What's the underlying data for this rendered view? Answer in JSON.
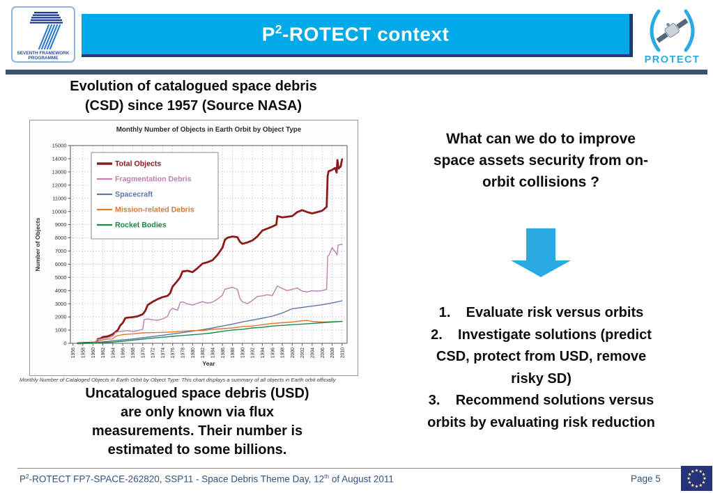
{
  "theme": {
    "banner_cyan": "#00a9e8",
    "banner_edge_navy": "#1e3c72",
    "separator_navy": "#3d5270",
    "arrow_cyan": "#29abe2",
    "protect_cyan": "#29abe2",
    "footer_navy": "#31517e"
  },
  "header": {
    "fp7": {
      "lines": [
        "SEVENTH FRAMEWORK",
        "PROGRAMME"
      ]
    },
    "title_parts": {
      "pre": "P",
      "sup": "2",
      "rest": "-ROTECT context"
    },
    "protect": {
      "label": "PROTECT"
    }
  },
  "left": {
    "heading_lines": [
      "Evolution of catalogued space debris",
      "(CSD) since 1957 (Source NASA)"
    ],
    "chart_caption": "Monthly Number of Cataloged Objects in Earth Orbit by Object Type:  This chart displays a summary of all objects in Earth orbit officially",
    "usd_lines": [
      "Uncatalogued space debris (USD)",
      "are only known via flux",
      "measurements. Their number is",
      "estimated to some billions."
    ]
  },
  "right": {
    "question_lines": [
      "What can we do to improve",
      "space assets security from on-",
      "orbit collisions ?"
    ],
    "steps_lines": [
      "1.    Evaluate risk versus orbits",
      "2.    Investigate solutions (predict",
      "CSD, protect from USD, remove",
      "risky SD)",
      "3.    Recommend solutions versus",
      "orbits by evaluating risk reduction"
    ]
  },
  "footer": {
    "parts": {
      "pre": "P",
      "sup1": "2",
      "mid": "-ROTECT FP7-SPACE-262820, SSP11 - Space Debris Theme Day, 12",
      "sup2": "th",
      "end": " of August 2011"
    },
    "page_label": "Page 5",
    "eu_flag": {
      "stars": 12,
      "bg": "#26337b",
      "star_color": "#efe2a2"
    }
  },
  "chart_data": {
    "type": "line",
    "title": "Monthly Number of Objects in Earth Orbit by Object Type",
    "xlabel": "Year",
    "ylabel": "Number of Objects",
    "xlim": [
      1955.5,
      2011
    ],
    "ylim": [
      0,
      15000
    ],
    "x_ticks": [
      1956,
      1958,
      1960,
      1962,
      1964,
      1966,
      1968,
      1970,
      1972,
      1974,
      1976,
      1978,
      1980,
      1982,
      1984,
      1986,
      1988,
      1990,
      1992,
      1994,
      1996,
      1998,
      2000,
      2002,
      2004,
      2006,
      2008,
      2010
    ],
    "y_ticks": [
      0,
      1000,
      2000,
      3000,
      4000,
      5000,
      6000,
      7000,
      8000,
      9000,
      10000,
      11000,
      12000,
      13000,
      14000,
      15000
    ],
    "grid": true,
    "legend_position": "upper-left",
    "series": [
      {
        "name": "Total Objects",
        "color": "#8b1b1b",
        "width": 2.8,
        "points": [
          [
            1957,
            0
          ],
          [
            1958,
            15
          ],
          [
            1959,
            30
          ],
          [
            1960,
            50
          ],
          [
            1960.8,
            60
          ],
          [
            1961,
            320
          ],
          [
            1961.5,
            350
          ],
          [
            1962,
            475
          ],
          [
            1963,
            530
          ],
          [
            1964,
            680
          ],
          [
            1965,
            1000
          ],
          [
            1965.5,
            1350
          ],
          [
            1966,
            1550
          ],
          [
            1966.5,
            1900
          ],
          [
            1967,
            1950
          ],
          [
            1968,
            1980
          ],
          [
            1969,
            2050
          ],
          [
            1970,
            2200
          ],
          [
            1970.5,
            2450
          ],
          [
            1971,
            2900
          ],
          [
            1972,
            3150
          ],
          [
            1973,
            3350
          ],
          [
            1974,
            3500
          ],
          [
            1975,
            3600
          ],
          [
            1975.5,
            3800
          ],
          [
            1976,
            4300
          ],
          [
            1977,
            4750
          ],
          [
            1977.5,
            5000
          ],
          [
            1978,
            5450
          ],
          [
            1979,
            5500
          ],
          [
            1980,
            5400
          ],
          [
            1981,
            5700
          ],
          [
            1982,
            6050
          ],
          [
            1983,
            6150
          ],
          [
            1984,
            6300
          ],
          [
            1985,
            6700
          ],
          [
            1986,
            7250
          ],
          [
            1986.5,
            7850
          ],
          [
            1987,
            8000
          ],
          [
            1988,
            8100
          ],
          [
            1989,
            8050
          ],
          [
            1989.5,
            7700
          ],
          [
            1990,
            7550
          ],
          [
            1991,
            7650
          ],
          [
            1992,
            7800
          ],
          [
            1993,
            8100
          ],
          [
            1994,
            8550
          ],
          [
            1995,
            8700
          ],
          [
            1996,
            8850
          ],
          [
            1996.8,
            9000
          ],
          [
            1997,
            9650
          ],
          [
            1998,
            9550
          ],
          [
            1999,
            9600
          ],
          [
            2000,
            9650
          ],
          [
            2001,
            9950
          ],
          [
            2002,
            10100
          ],
          [
            2003,
            9950
          ],
          [
            2004,
            9850
          ],
          [
            2005,
            9950
          ],
          [
            2006,
            10050
          ],
          [
            2006.9,
            10350
          ],
          [
            2007.1,
            12700
          ],
          [
            2007.3,
            13050
          ],
          [
            2008,
            13150
          ],
          [
            2008.6,
            13300
          ],
          [
            2008.9,
            12950
          ],
          [
            2009.05,
            13900
          ],
          [
            2009.3,
            13250
          ],
          [
            2009.7,
            13400
          ],
          [
            2010,
            13950
          ]
        ]
      },
      {
        "name": "Fragmentation Debris",
        "color": "#c07fae",
        "width": 1.4,
        "points": [
          [
            1957,
            0
          ],
          [
            1960,
            0
          ],
          [
            1961,
            280
          ],
          [
            1962,
            360
          ],
          [
            1963,
            420
          ],
          [
            1964,
            520
          ],
          [
            1964.5,
            800
          ],
          [
            1965,
            870
          ],
          [
            1966,
            920
          ],
          [
            1967,
            960
          ],
          [
            1968,
            900
          ],
          [
            1969,
            960
          ],
          [
            1970,
            1050
          ],
          [
            1970.3,
            1800
          ],
          [
            1971,
            1850
          ],
          [
            1972,
            1780
          ],
          [
            1973,
            1750
          ],
          [
            1974,
            1850
          ],
          [
            1975,
            2050
          ],
          [
            1975.5,
            2500
          ],
          [
            1976,
            2650
          ],
          [
            1977,
            2500
          ],
          [
            1977.5,
            3100
          ],
          [
            1978,
            3150
          ],
          [
            1979,
            2980
          ],
          [
            1980,
            2900
          ],
          [
            1981,
            3050
          ],
          [
            1982,
            3160
          ],
          [
            1983,
            3050
          ],
          [
            1984,
            3120
          ],
          [
            1985,
            3350
          ],
          [
            1986,
            3650
          ],
          [
            1986.5,
            4100
          ],
          [
            1987,
            4150
          ],
          [
            1988,
            4250
          ],
          [
            1989,
            4100
          ],
          [
            1989.5,
            3400
          ],
          [
            1990,
            3150
          ],
          [
            1991,
            3000
          ],
          [
            1992,
            3250
          ],
          [
            1993,
            3550
          ],
          [
            1994,
            3600
          ],
          [
            1995,
            3680
          ],
          [
            1996,
            3620
          ],
          [
            1997,
            4350
          ],
          [
            1998,
            4150
          ],
          [
            1999,
            4000
          ],
          [
            2000,
            4100
          ],
          [
            2001,
            4200
          ],
          [
            2002,
            3950
          ],
          [
            2003,
            3900
          ],
          [
            2004,
            3980
          ],
          [
            2005,
            3950
          ],
          [
            2006,
            4000
          ],
          [
            2006.9,
            4100
          ],
          [
            2007.1,
            6600
          ],
          [
            2007.4,
            6700
          ],
          [
            2008,
            7250
          ],
          [
            2008.7,
            6900
          ],
          [
            2009,
            6700
          ],
          [
            2009.2,
            7450
          ],
          [
            2010,
            7500
          ]
        ]
      },
      {
        "name": "Spacecraft",
        "color": "#5f74a8",
        "width": 1.4,
        "points": [
          [
            1957,
            0
          ],
          [
            1958,
            5
          ],
          [
            1960,
            40
          ],
          [
            1962,
            110
          ],
          [
            1964,
            190
          ],
          [
            1966,
            260
          ],
          [
            1968,
            330
          ],
          [
            1970,
            420
          ],
          [
            1972,
            510
          ],
          [
            1974,
            610
          ],
          [
            1976,
            710
          ],
          [
            1978,
            810
          ],
          [
            1980,
            920
          ],
          [
            1982,
            1030
          ],
          [
            1984,
            1160
          ],
          [
            1986,
            1310
          ],
          [
            1988,
            1460
          ],
          [
            1990,
            1620
          ],
          [
            1992,
            1760
          ],
          [
            1994,
            1900
          ],
          [
            1996,
            2060
          ],
          [
            1998,
            2300
          ],
          [
            2000,
            2620
          ],
          [
            2002,
            2720
          ],
          [
            2004,
            2820
          ],
          [
            2006,
            2920
          ],
          [
            2008,
            3060
          ],
          [
            2010,
            3220
          ]
        ]
      },
      {
        "name": "Mission-related Debris",
        "color": "#e0772f",
        "width": 1.4,
        "points": [
          [
            1957,
            0
          ],
          [
            1959,
            15
          ],
          [
            1960,
            60
          ],
          [
            1961,
            160
          ],
          [
            1962,
            260
          ],
          [
            1963,
            310
          ],
          [
            1964,
            330
          ],
          [
            1964.5,
            520
          ],
          [
            1965,
            580
          ],
          [
            1966,
            660
          ],
          [
            1967,
            690
          ],
          [
            1968,
            710
          ],
          [
            1970,
            790
          ],
          [
            1972,
            810
          ],
          [
            1974,
            830
          ],
          [
            1976,
            860
          ],
          [
            1978,
            910
          ],
          [
            1980,
            960
          ],
          [
            1982,
            960
          ],
          [
            1984,
            1060
          ],
          [
            1986,
            1110
          ],
          [
            1988,
            1160
          ],
          [
            1990,
            1260
          ],
          [
            1992,
            1310
          ],
          [
            1994,
            1410
          ],
          [
            1996,
            1510
          ],
          [
            1998,
            1560
          ],
          [
            2000,
            1610
          ],
          [
            2002,
            1710
          ],
          [
            2003,
            1730
          ],
          [
            2004,
            1660
          ],
          [
            2006,
            1610
          ],
          [
            2008,
            1630
          ],
          [
            2010,
            1660
          ]
        ]
      },
      {
        "name": "Rocket Bodies",
        "color": "#188a4c",
        "width": 1.4,
        "points": [
          [
            1957,
            0
          ],
          [
            1958,
            10
          ],
          [
            1960,
            25
          ],
          [
            1962,
            55
          ],
          [
            1964,
            90
          ],
          [
            1966,
            160
          ],
          [
            1968,
            230
          ],
          [
            1970,
            310
          ],
          [
            1972,
            390
          ],
          [
            1974,
            460
          ],
          [
            1976,
            530
          ],
          [
            1978,
            590
          ],
          [
            1980,
            650
          ],
          [
            1982,
            710
          ],
          [
            1984,
            790
          ],
          [
            1986,
            910
          ],
          [
            1988,
            1010
          ],
          [
            1990,
            1060
          ],
          [
            1992,
            1160
          ],
          [
            1994,
            1210
          ],
          [
            1996,
            1310
          ],
          [
            1998,
            1360
          ],
          [
            2000,
            1410
          ],
          [
            2002,
            1460
          ],
          [
            2004,
            1510
          ],
          [
            2006,
            1560
          ],
          [
            2008,
            1610
          ],
          [
            2010,
            1660
          ]
        ]
      }
    ]
  }
}
